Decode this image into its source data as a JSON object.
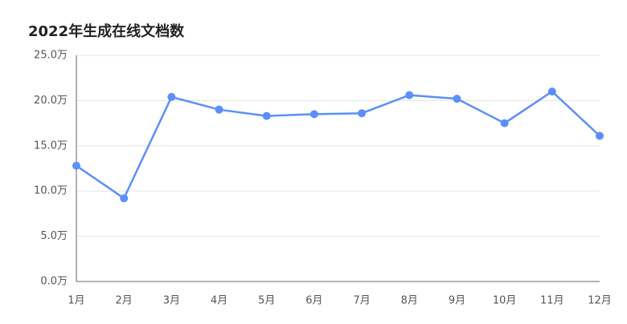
{
  "chart_data": {
    "type": "line",
    "title": "2022年生成在线文档数",
    "categories": [
      "1月",
      "2月",
      "3月",
      "4月",
      "5月",
      "6月",
      "7月",
      "8月",
      "9月",
      "10月",
      "11月",
      "12月"
    ],
    "series": [
      {
        "color": "#5b8ff9",
        "values": [
          12.8,
          9.2,
          20.4,
          19.0,
          18.3,
          18.5,
          18.6,
          20.6,
          20.2,
          17.5,
          21.0,
          16.1
        ]
      }
    ],
    "ylim": [
      0,
      25
    ],
    "yticks": [
      {
        "value": 0,
        "label": "0.0万"
      },
      {
        "value": 5,
        "label": "5.0万"
      },
      {
        "value": 10,
        "label": "10.0万"
      },
      {
        "value": 15,
        "label": "15.0万"
      },
      {
        "value": 20,
        "label": "20.0万"
      },
      {
        "value": 25,
        "label": "25.0万"
      }
    ],
    "grid": true
  }
}
